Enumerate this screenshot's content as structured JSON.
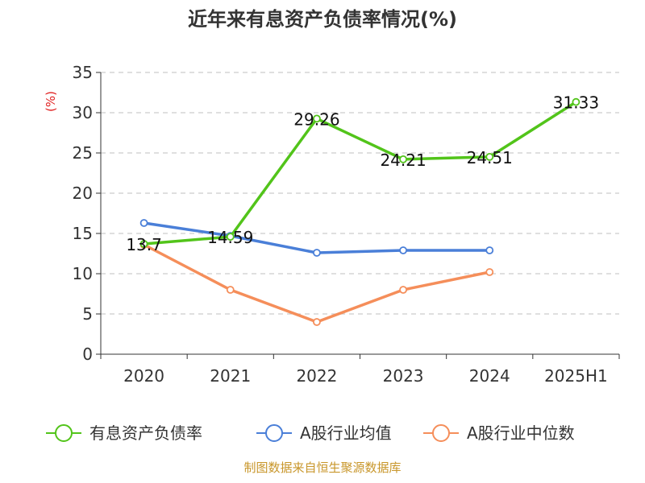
{
  "chart_data": {
    "type": "line",
    "title": "近年来有息资产负债率情况(%)",
    "ylabel": "(%)",
    "xlabel": "",
    "categories": [
      "2020",
      "2021",
      "2022",
      "2023",
      "2024",
      "2025H1"
    ],
    "ylim": [
      0,
      35
    ],
    "yticks": [
      0,
      5,
      10,
      15,
      20,
      25,
      30,
      35
    ],
    "grid": true,
    "legend_position": "bottom",
    "series": [
      {
        "name": "有息资产负债率",
        "color": "#52c41a",
        "values": [
          13.7,
          14.59,
          29.26,
          24.21,
          24.51,
          31.33
        ],
        "labels": [
          "13.7",
          "14.59",
          "29.26",
          "24.21",
          "24.51",
          "31.33"
        ]
      },
      {
        "name": "A股行业均值",
        "color": "#4a7fd8",
        "values": [
          16.3,
          14.7,
          12.6,
          12.9,
          12.9,
          null
        ]
      },
      {
        "name": "A股行业中位数",
        "color": "#f58e5a",
        "values": [
          13.6,
          8.0,
          4.0,
          8.0,
          10.2,
          null
        ]
      }
    ]
  },
  "source": "制图数据来自恒生聚源数据库",
  "colors": {
    "axis": "#333333",
    "grid": "#cccccc",
    "ylabel": "#e02020",
    "source": "#c8962a"
  }
}
